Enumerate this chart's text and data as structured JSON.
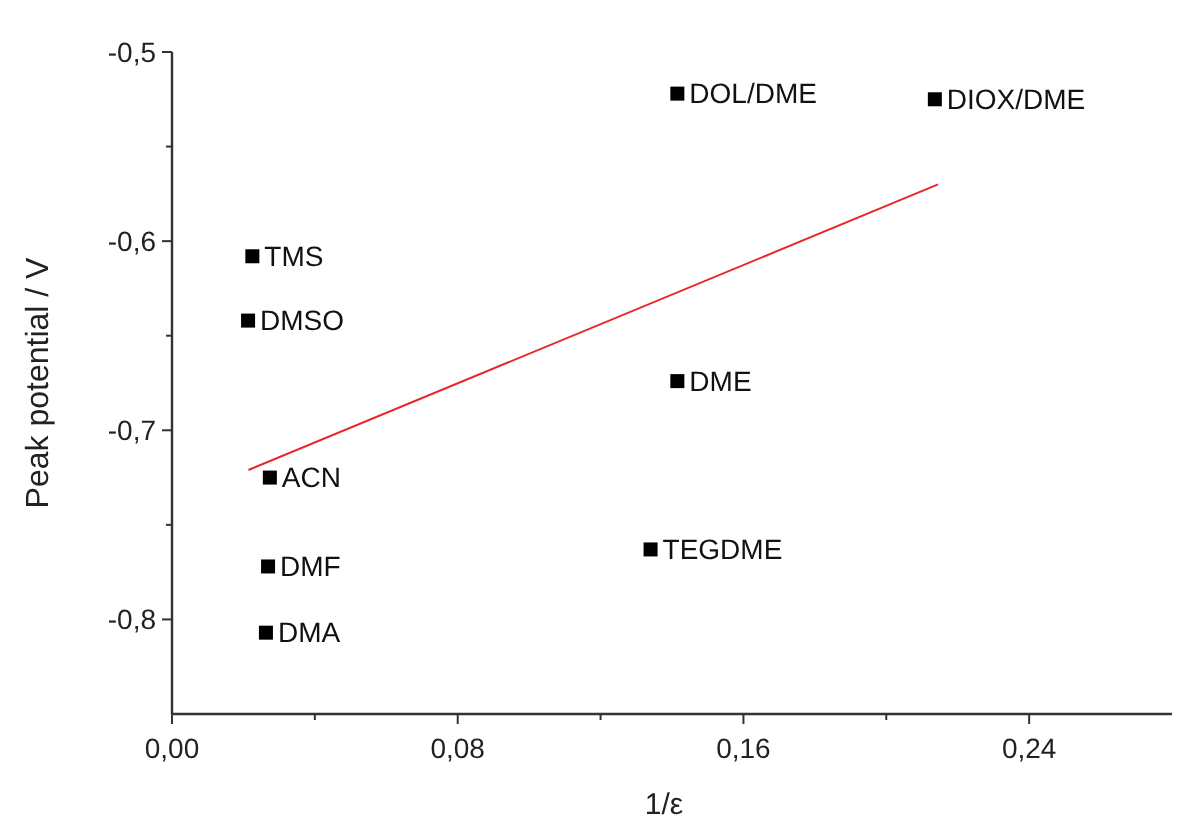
{
  "chart_data": {
    "type": "scatter",
    "xlabel": "1/ε",
    "ylabel": "Peak potential / V",
    "xlim": [
      0,
      0.28
    ],
    "ylim": [
      -0.85,
      -0.5
    ],
    "xticks": [
      {
        "value": 0,
        "label": "0,00"
      },
      {
        "value": 0.04,
        "label": null
      },
      {
        "value": 0.08,
        "label": "0,08"
      },
      {
        "value": 0.12,
        "label": null
      },
      {
        "value": 0.16,
        "label": "0,16"
      },
      {
        "value": 0.2,
        "label": null
      },
      {
        "value": 0.24,
        "label": "0,24"
      }
    ],
    "yticks": [
      {
        "value": -0.8,
        "label": "-0,8"
      },
      {
        "value": -0.75,
        "label": null
      },
      {
        "value": -0.7,
        "label": "-0,7"
      },
      {
        "value": -0.65,
        "label": null
      },
      {
        "value": -0.6,
        "label": "-0,6"
      },
      {
        "value": -0.55,
        "label": null
      },
      {
        "value": -0.5,
        "label": "-0,5"
      }
    ],
    "grid": false,
    "series": [
      {
        "marker": "square",
        "color": "#000000",
        "x": [
          0.0225,
          0.0213,
          0.0274,
          0.0269,
          0.0263,
          0.1415,
          0.2136,
          0.1415,
          0.134
        ],
        "values": [
          -0.608,
          -0.642,
          -0.725,
          -0.772,
          -0.807,
          -0.522,
          -0.525,
          -0.674,
          -0.763
        ]
      },
      {
        "type": "line",
        "marker": "none",
        "color": "#e8262b",
        "x": [
          0.0214,
          0.2145
        ],
        "values": [
          -0.721,
          -0.57
        ]
      }
    ],
    "annotations": [
      {
        "text": "TMS",
        "x": 0.0225,
        "y": -0.608
      },
      {
        "text": "DMSO",
        "x": 0.0213,
        "y": -0.642
      },
      {
        "text": "ACN",
        "x": 0.0274,
        "y": -0.725
      },
      {
        "text": "DMF",
        "x": 0.0269,
        "y": -0.772
      },
      {
        "text": "DMA",
        "x": 0.0263,
        "y": -0.807
      },
      {
        "text": "DOL/DME",
        "x": 0.1415,
        "y": -0.522
      },
      {
        "text": "DIOX/DME",
        "x": 0.2136,
        "y": -0.525
      },
      {
        "text": "DME",
        "x": 0.1415,
        "y": -0.674
      },
      {
        "text": "TEGDME",
        "x": 0.134,
        "y": -0.763
      }
    ]
  }
}
